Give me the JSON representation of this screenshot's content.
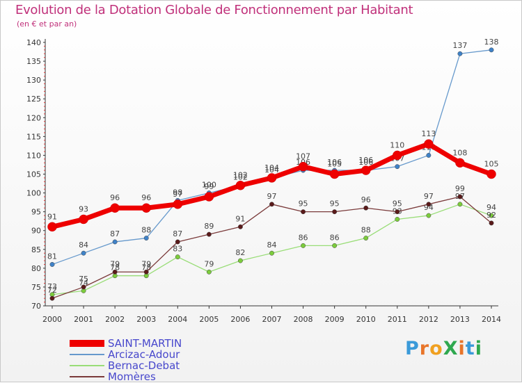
{
  "header": {
    "title": "Evolution de la Dotation Globale de Fonctionnement par Habitant",
    "subtitle": "(en € et par an)"
  },
  "brand": {
    "name": "ProXiti"
  },
  "chart_data": {
    "type": "line",
    "x": [
      2000,
      2001,
      2002,
      2003,
      2004,
      2005,
      2006,
      2007,
      2008,
      2009,
      2010,
      2011,
      2012,
      2013,
      2014
    ],
    "xlim": [
      2000,
      2014
    ],
    "ylim": [
      70,
      140
    ],
    "yticks": [
      70,
      75,
      80,
      85,
      90,
      95,
      100,
      105,
      110,
      115,
      120,
      125,
      130,
      135,
      140
    ],
    "grid": false,
    "legend_position": "bottom-left",
    "series": [
      {
        "name": "Arcizac-Adour",
        "color": "#6699cc",
        "marker": "#3f82c8",
        "values": [
          81,
          84,
          87,
          88,
          98,
          100,
          102,
          104,
          106,
          106,
          106,
          107,
          110,
          137,
          138
        ]
      },
      {
        "name": "Bernac-Debat",
        "color": "#99dd77",
        "marker": "#7ccc3c",
        "values": [
          73,
          74,
          78,
          78,
          83,
          79,
          82,
          84,
          86,
          86,
          88,
          93,
          94,
          97,
          94
        ]
      },
      {
        "name": "Momères",
        "color": "#7a3a3a",
        "marker": "#5a1a1a",
        "values": [
          72,
          75,
          79,
          79,
          87,
          89,
          91,
          97,
          95,
          95,
          96,
          95,
          97,
          99,
          92
        ]
      },
      {
        "name": "SAINT-MARTIN",
        "color": "#ee0000",
        "marker": "#ee0000",
        "values": [
          91,
          93,
          96,
          96,
          97,
          99,
          102,
          104,
          107,
          105,
          106,
          110,
          113,
          108,
          105
        ]
      }
    ],
    "legend_order": [
      "SAINT-MARTIN",
      "Arcizac-Adour",
      "Bernac-Debat",
      "Momères"
    ]
  }
}
